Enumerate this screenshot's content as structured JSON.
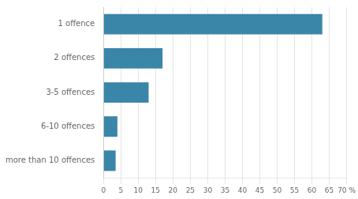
{
  "chart_data": {
    "type": "bar",
    "orientation": "horizontal",
    "categories": [
      "more than 10 offences",
      "6-10 offences",
      "3-5 offences",
      "2 offences",
      "1 offence"
    ],
    "values": [
      3.5,
      4.0,
      13.0,
      17.0,
      63.0
    ],
    "color": "#3a86a8",
    "xlim": [
      0,
      70
    ],
    "xticks": [
      0,
      5,
      10,
      15,
      20,
      25,
      30,
      35,
      40,
      45,
      50,
      55,
      60,
      65,
      {
        "value": 70,
        "label": "70 %"
      }
    ],
    "grid": true
  }
}
